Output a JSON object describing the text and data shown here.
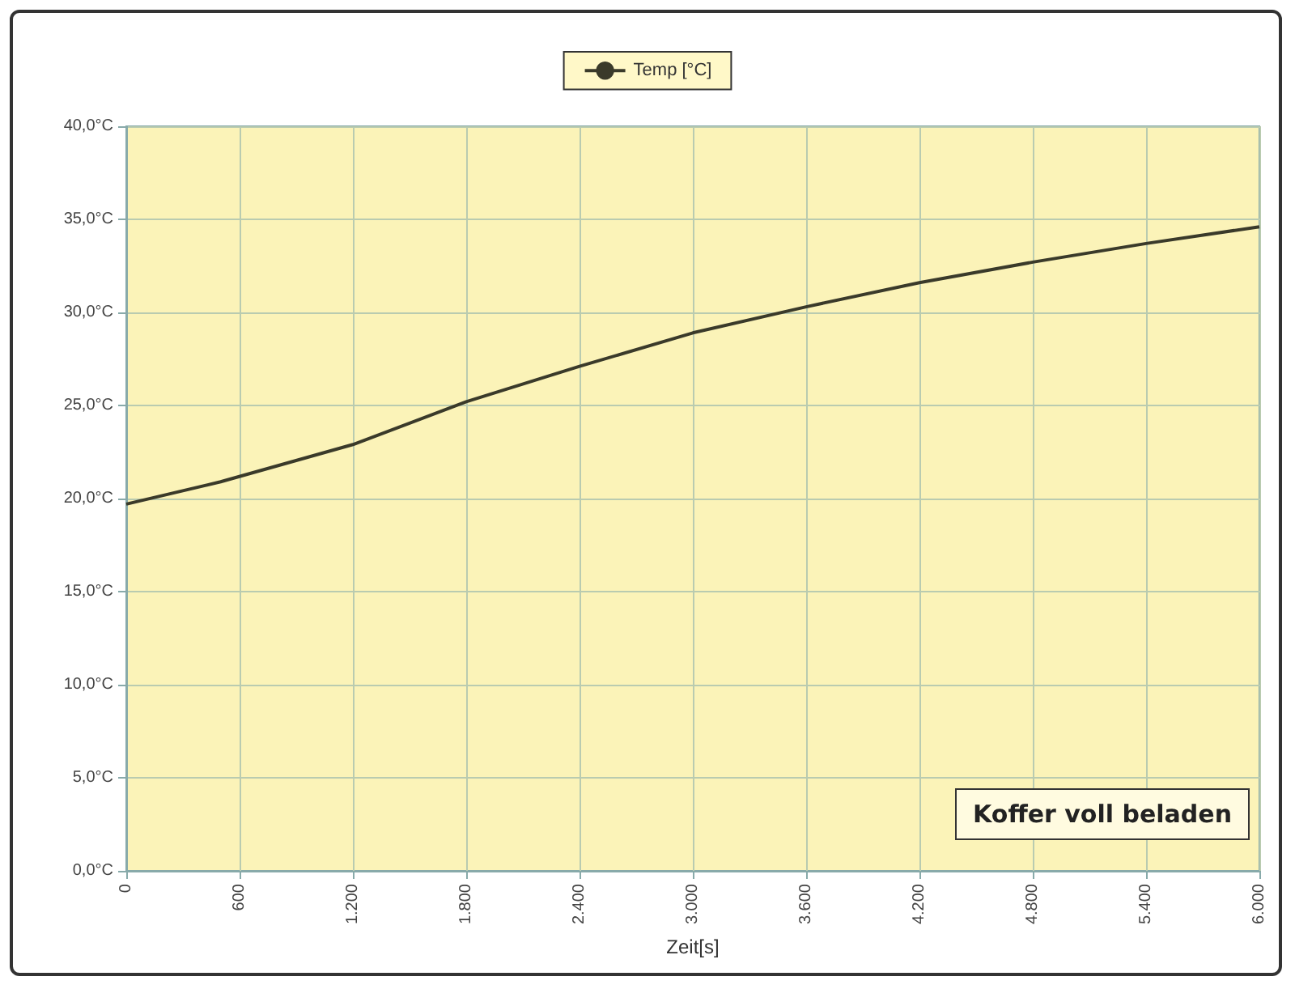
{
  "chart_data": {
    "type": "line",
    "xlabel": "Zeit[s]",
    "annotations": [
      "Koffer voll beladen"
    ],
    "series": [
      {
        "name": "Temp [°C]",
        "color": "#3a3a2a",
        "x": [
          0,
          500,
          1200,
          1800,
          2400,
          3000,
          3600,
          4200,
          4800,
          5400,
          6000
        ],
        "values": [
          19.7,
          20.9,
          22.9,
          25.2,
          27.1,
          28.9,
          30.3,
          31.6,
          32.7,
          33.7,
          34.6
        ]
      }
    ],
    "xlim": [
      0,
      6000
    ],
    "xticks": [
      {
        "value": 0,
        "label": "0"
      },
      {
        "value": 600,
        "label": "600"
      },
      {
        "value": 1200,
        "label": "1.200"
      },
      {
        "value": 1800,
        "label": "1.800"
      },
      {
        "value": 2400,
        "label": "2.400"
      },
      {
        "value": 3000,
        "label": "3.000"
      },
      {
        "value": 3600,
        "label": "3.600"
      },
      {
        "value": 4200,
        "label": "4.200"
      },
      {
        "value": 4800,
        "label": "4.800"
      },
      {
        "value": 5400,
        "label": "5.400"
      },
      {
        "value": 6000,
        "label": "6.000"
      }
    ],
    "ylim": [
      0,
      40
    ],
    "yticks": [
      {
        "value": 0,
        "label": "0,0°C"
      },
      {
        "value": 5,
        "label": "5,0°C"
      },
      {
        "value": 10,
        "label": "10,0°C"
      },
      {
        "value": 15,
        "label": "15,0°C"
      },
      {
        "value": 20,
        "label": "20,0°C"
      },
      {
        "value": 25,
        "label": "25,0°C"
      },
      {
        "value": 30,
        "label": "30,0°C"
      },
      {
        "value": 35,
        "label": "35,0°C"
      },
      {
        "value": 40,
        "label": "40,0°C"
      }
    ],
    "grid": true,
    "legend": "top",
    "marker": "none",
    "line_style": "solid"
  }
}
